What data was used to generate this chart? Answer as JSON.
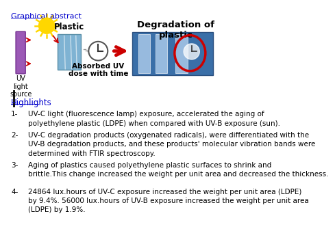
{
  "title_graphical": "Graphical abstract",
  "title_highlights": "Highlights",
  "separator_line": "|",
  "highlight_1": "UV-C light (fluorescence lamp) exposure, accelerated the aging of\npolyethylene plastic (LDPE) when compared with UV-B exposure (sun).",
  "highlight_2": "UV-C degradation products (oxygenated radicals), were differentiated with the\nUV-B degradation products, and these products' molecular vibration bands were\ndetermined with FTIR spectroscopy.",
  "highlight_3": "Aging of plastics caused polyethylene plastic surfaces to shrink and\nbrittle.This change increased the weight per unit area and decreased the thickness.",
  "highlight_4": "24864 lux.hours of UV-C exposure increased the weight per unit area (LDPE)\nby 9.4%. 56000 lux.hours of UV-B exposure increased the weight per unit area\n(LDPE) by 1.9%.",
  "bg_color": "#ffffff",
  "text_color": "#000000",
  "link_color": "#0000cc",
  "red_color": "#cc0000",
  "label_plastic": "Plastic",
  "label_uv": "UV\nlight\nsource",
  "label_absorbed": "Absorbed UV\ndose with time",
  "label_degradation": "Degradation of\nplastic",
  "sun_color": "#FFD700",
  "lamp_color": "#9b59b6",
  "lamp_edge": "#7d3c98",
  "plastic_color": "#7fb3d3",
  "plastic_edge": "#5a8fa8",
  "deg_rect_color": "#3a6fa8",
  "deg_rect_edge": "#2a5080",
  "strip_color": "#a8c8e8"
}
